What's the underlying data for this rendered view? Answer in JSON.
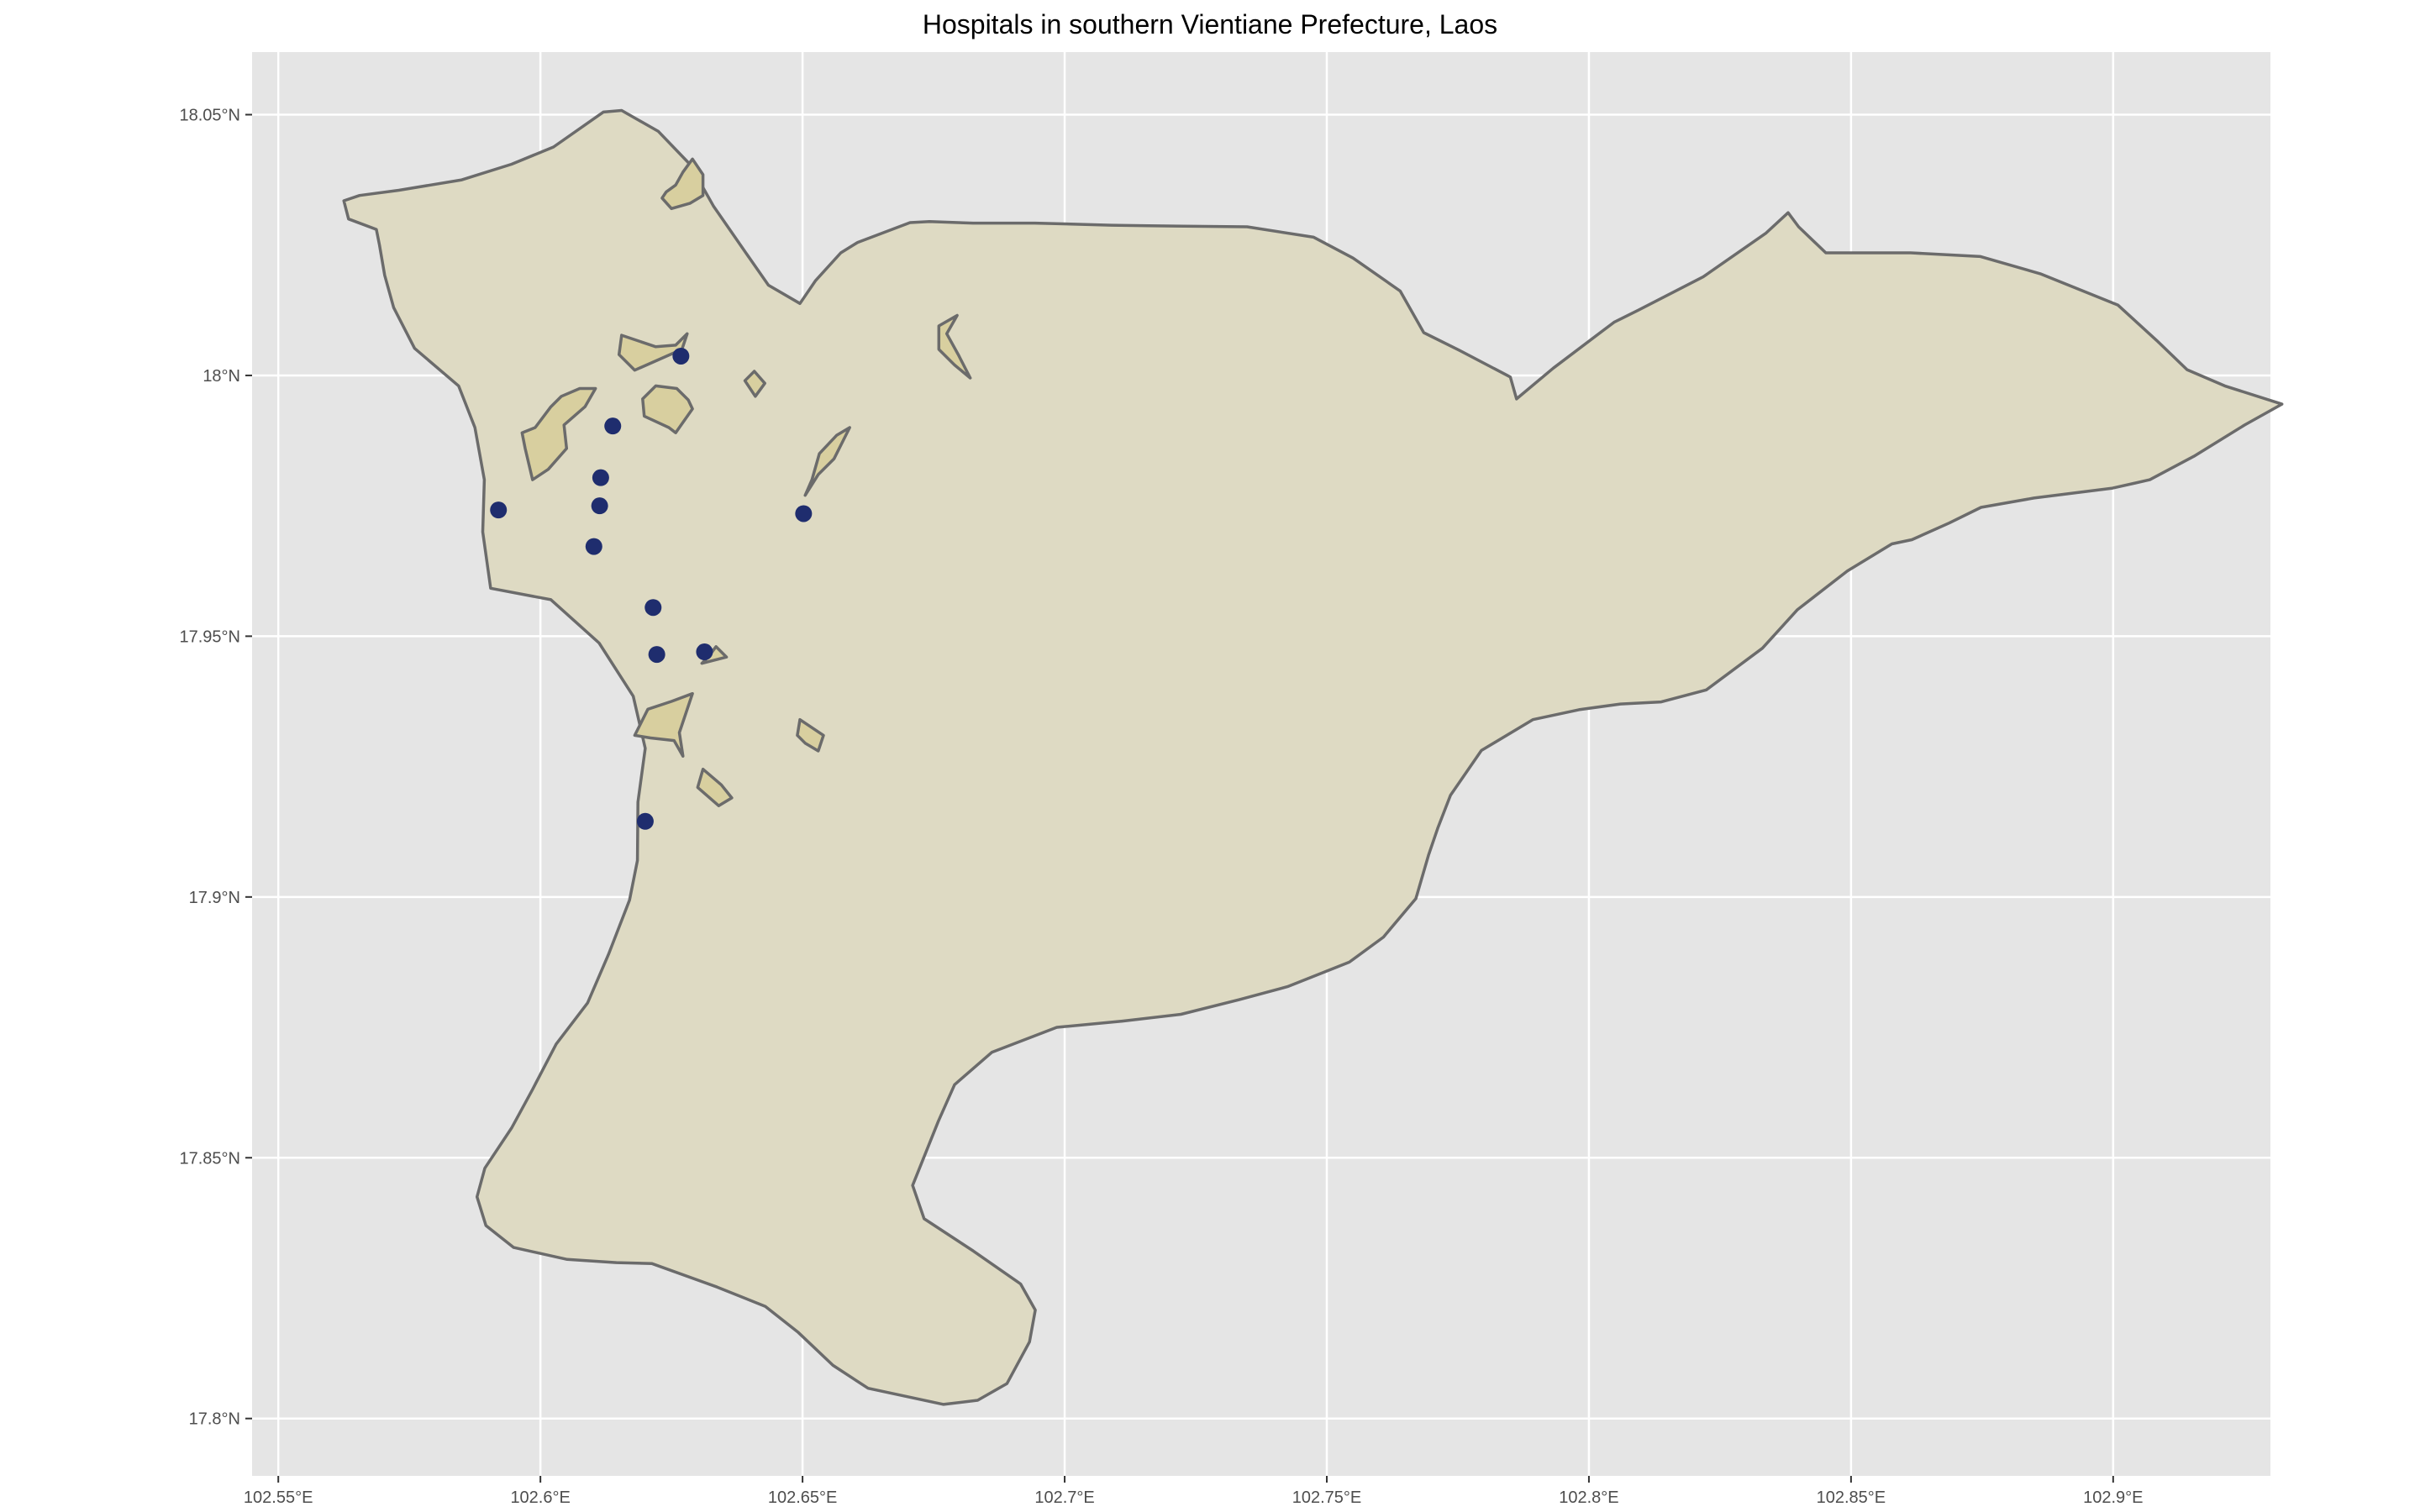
{
  "chart_data": {
    "type": "map",
    "title": "Hospitals in southern Vientiane Prefecture, Laos",
    "xlim": [
      102.545,
      102.93
    ],
    "ylim": [
      17.789,
      18.062
    ],
    "grid": true,
    "x_ticks": [
      {
        "value": 102.55,
        "label": "102.55°E"
      },
      {
        "value": 102.6,
        "label": "102.6°E"
      },
      {
        "value": 102.65,
        "label": "102.65°E"
      },
      {
        "value": 102.7,
        "label": "102.7°E"
      },
      {
        "value": 102.75,
        "label": "102.75°E"
      },
      {
        "value": 102.8,
        "label": "102.8°E"
      },
      {
        "value": 102.85,
        "label": "102.85°E"
      },
      {
        "value": 102.9,
        "label": "102.9°E"
      }
    ],
    "y_ticks": [
      {
        "value": 17.8,
        "label": "17.8°N"
      },
      {
        "value": 17.85,
        "label": "17.85°N"
      },
      {
        "value": 17.9,
        "label": "17.9°N"
      },
      {
        "value": 17.95,
        "label": "17.95°N"
      },
      {
        "value": 18.0,
        "label": "18°N"
      },
      {
        "value": 18.05,
        "label": "18.05°N"
      }
    ],
    "boundary": [
      [
        102.5625,
        18.0335
      ],
      [
        102.5655,
        18.0345
      ],
      [
        102.573,
        18.0355
      ],
      [
        102.585,
        18.0375
      ],
      [
        102.5945,
        18.0405
      ],
      [
        102.6025,
        18.0438
      ],
      [
        102.612,
        18.0505
      ],
      [
        102.6155,
        18.0508
      ],
      [
        102.6225,
        18.0468
      ],
      [
        102.6285,
        18.0405
      ],
      [
        102.633,
        18.0325
      ],
      [
        102.6385,
        18.0245
      ],
      [
        102.6435,
        18.0173
      ],
      [
        102.6495,
        18.0138
      ],
      [
        102.6525,
        18.0182
      ],
      [
        102.6573,
        18.0235
      ],
      [
        102.6605,
        18.0255
      ],
      [
        102.6705,
        18.0293
      ],
      [
        102.6742,
        18.0295
      ],
      [
        102.6825,
        18.0292
      ],
      [
        102.6943,
        18.0292
      ],
      [
        102.7089,
        18.0288
      ],
      [
        102.716,
        18.0287
      ],
      [
        102.7348,
        18.0285
      ],
      [
        102.7475,
        18.0265
      ],
      [
        102.755,
        18.0225
      ],
      [
        102.764,
        18.0162
      ],
      [
        102.7685,
        18.0082
      ],
      [
        102.7753,
        18.0048
      ],
      [
        102.785,
        17.9997
      ],
      [
        102.7862,
        17.9955
      ],
      [
        102.7932,
        18.0014
      ],
      [
        102.8048,
        18.0102
      ],
      [
        102.8094,
        18.0125
      ],
      [
        102.8218,
        18.0189
      ],
      [
        102.8338,
        18.0273
      ],
      [
        102.838,
        18.0312
      ],
      [
        102.84,
        18.0285
      ],
      [
        102.8452,
        18.0235
      ],
      [
        102.8614,
        18.0235
      ],
      [
        102.8747,
        18.0228
      ],
      [
        102.8861,
        18.0195
      ],
      [
        102.9009,
        18.0135
      ],
      [
        102.9083,
        18.0067
      ],
      [
        102.9141,
        18.0011
      ],
      [
        102.9213,
        17.998
      ],
      [
        102.9322,
        17.9945
      ],
      [
        102.9251,
        17.9905
      ],
      [
        102.9154,
        17.9845
      ],
      [
        102.907,
        17.98
      ],
      [
        102.8999,
        17.9784
      ],
      [
        102.8849,
        17.9765
      ],
      [
        102.8748,
        17.9747
      ],
      [
        102.8687,
        17.9717
      ],
      [
        102.8616,
        17.9685
      ],
      [
        102.8578,
        17.9677
      ],
      [
        102.8493,
        17.9625
      ],
      [
        102.8398,
        17.9551
      ],
      [
        102.8331,
        17.9477
      ],
      [
        102.8224,
        17.9397
      ],
      [
        102.8138,
        17.9374
      ],
      [
        102.806,
        17.937
      ],
      [
        102.7981,
        17.9359
      ],
      [
        102.7893,
        17.934
      ],
      [
        102.7795,
        17.9281
      ],
      [
        102.7736,
        17.9195
      ],
      [
        102.7712,
        17.9133
      ],
      [
        102.7694,
        17.908
      ],
      [
        102.767,
        17.8997
      ],
      [
        102.7608,
        17.8923
      ],
      [
        102.7543,
        17.8875
      ],
      [
        102.7425,
        17.8828
      ],
      [
        102.7333,
        17.8803
      ],
      [
        102.7222,
        17.8775
      ],
      [
        102.711,
        17.8762
      ],
      [
        102.6985,
        17.875
      ],
      [
        102.6861,
        17.8702
      ],
      [
        102.679,
        17.864
      ],
      [
        102.6759,
        17.857
      ],
      [
        102.671,
        17.8447
      ],
      [
        102.6732,
        17.8383
      ],
      [
        102.6826,
        17.8321
      ],
      [
        102.6916,
        17.8258
      ],
      [
        102.6944,
        17.8208
      ],
      [
        102.6933,
        17.8147
      ],
      [
        102.689,
        17.8067
      ],
      [
        102.6834,
        17.8035
      ],
      [
        102.6769,
        17.8027
      ],
      [
        102.6625,
        17.8058
      ],
      [
        102.6558,
        17.8102
      ],
      [
        102.6492,
        17.8165
      ],
      [
        102.6429,
        17.8215
      ],
      [
        102.6337,
        17.8252
      ],
      [
        102.6213,
        17.8297
      ],
      [
        102.6145,
        17.8299
      ],
      [
        102.6051,
        17.8305
      ],
      [
        102.5949,
        17.8328
      ],
      [
        102.5896,
        17.837
      ],
      [
        102.5879,
        17.8425
      ],
      [
        102.5894,
        17.848
      ],
      [
        102.5945,
        17.8557
      ],
      [
        102.5985,
        17.8631
      ],
      [
        102.603,
        17.8718
      ],
      [
        102.609,
        17.8797
      ],
      [
        102.613,
        17.889
      ],
      [
        102.617,
        17.8994
      ],
      [
        102.6185,
        17.907
      ],
      [
        102.6186,
        17.9182
      ],
      [
        102.62,
        17.9285
      ],
      [
        102.6177,
        17.9385
      ],
      [
        102.6112,
        17.9487
      ],
      [
        102.602,
        17.957
      ],
      [
        102.5905,
        17.9592
      ],
      [
        102.589,
        17.97
      ],
      [
        102.5893,
        17.98
      ],
      [
        102.5875,
        17.99
      ],
      [
        102.5844,
        17.998
      ],
      [
        102.576,
        18.0052
      ],
      [
        102.572,
        18.013
      ],
      [
        102.5703,
        18.0192
      ],
      [
        102.5693,
        18.025
      ],
      [
        102.5687,
        18.028
      ],
      [
        102.5634,
        18.03
      ],
      [
        102.5625,
        18.0335
      ]
    ],
    "inner_areas": [
      [
        [
          102.625,
          18.032
        ],
        [
          102.6285,
          18.033
        ],
        [
          102.631,
          18.0345
        ],
        [
          102.631,
          18.0385
        ],
        [
          102.629,
          18.0415
        ],
        [
          102.6272,
          18.039
        ],
        [
          102.6258,
          18.0365
        ],
        [
          102.624,
          18.0352
        ],
        [
          102.6232,
          18.034
        ],
        [
          102.625,
          18.032
        ]
      ],
      [
        [
          102.628,
          18.008
        ],
        [
          102.6258,
          18.0058
        ],
        [
          102.622,
          18.0055
        ],
        [
          102.6155,
          18.0077
        ],
        [
          102.615,
          18.004
        ],
        [
          102.618,
          18.001
        ],
        [
          102.627,
          18.005
        ],
        [
          102.628,
          18.008
        ]
      ],
      [
        [
          102.629,
          17.9936
        ],
        [
          102.6258,
          17.989
        ],
        [
          102.6245,
          17.99
        ],
        [
          102.6198,
          17.9922
        ],
        [
          102.6195,
          17.9955
        ],
        [
          102.622,
          17.998
        ],
        [
          102.626,
          17.9975
        ],
        [
          102.6282,
          17.9953
        ],
        [
          102.629,
          17.9936
        ]
      ],
      [
        [
          102.6105,
          17.9975
        ],
        [
          102.6085,
          17.994
        ],
        [
          102.6045,
          17.9905
        ],
        [
          102.605,
          17.986
        ],
        [
          102.6015,
          17.982
        ],
        [
          102.5985,
          17.98
        ],
        [
          102.5971,
          17.986
        ],
        [
          102.5965,
          17.989
        ],
        [
          102.599,
          17.99
        ],
        [
          102.602,
          17.994
        ],
        [
          102.604,
          17.996
        ],
        [
          102.6075,
          17.9975
        ],
        [
          102.6105,
          17.9975
        ]
      ],
      [
        [
          102.659,
          17.99
        ],
        [
          102.656,
          17.984
        ],
        [
          102.653,
          17.981
        ],
        [
          102.6505,
          17.977
        ],
        [
          102.6518,
          17.98
        ],
        [
          102.6532,
          17.985
        ],
        [
          102.6565,
          17.9885
        ],
        [
          102.659,
          17.99
        ]
      ],
      [
        [
          102.6795,
          18.0115
        ],
        [
          102.6775,
          18.008
        ],
        [
          102.6797,
          18.004
        ],
        [
          102.682,
          17.9995
        ],
        [
          102.679,
          18.002
        ],
        [
          102.676,
          18.005
        ],
        [
          102.676,
          18.0095
        ],
        [
          102.6795,
          18.0115
        ]
      ],
      [
        [
          102.629,
          17.939
        ],
        [
          102.625,
          17.9375
        ],
        [
          102.6205,
          17.936
        ],
        [
          102.618,
          17.931
        ],
        [
          102.621,
          17.9305
        ],
        [
          102.6255,
          17.93
        ],
        [
          102.6272,
          17.927
        ],
        [
          102.6265,
          17.9315
        ],
        [
          102.629,
          17.939
        ]
      ],
      [
        [
          102.6355,
          17.946
        ],
        [
          102.6335,
          17.948
        ],
        [
          102.632,
          17.946
        ],
        [
          102.6308,
          17.9448
        ],
        [
          102.6355,
          17.946
        ]
      ],
      [
        [
          102.6495,
          17.934
        ],
        [
          102.654,
          17.931
        ],
        [
          102.653,
          17.928
        ],
        [
          102.6505,
          17.9295
        ],
        [
          102.649,
          17.931
        ],
        [
          102.6495,
          17.934
        ]
      ],
      [
        [
          102.631,
          17.9245
        ],
        [
          102.6345,
          17.9215
        ],
        [
          102.6365,
          17.919
        ],
        [
          102.634,
          17.9175
        ],
        [
          102.63,
          17.921
        ],
        [
          102.631,
          17.9245
        ]
      ],
      [
        [
          102.6408,
          18.0008
        ],
        [
          102.6428,
          17.9985
        ],
        [
          102.641,
          17.996
        ],
        [
          102.639,
          17.999
        ],
        [
          102.6408,
          18.0008
        ]
      ]
    ],
    "points": [
      {
        "lon": 102.6268,
        "lat": 18.0037
      },
      {
        "lon": 102.6138,
        "lat": 17.9903
      },
      {
        "lon": 102.6115,
        "lat": 17.9804
      },
      {
        "lon": 102.6113,
        "lat": 17.975
      },
      {
        "lon": 102.6102,
        "lat": 17.9672
      },
      {
        "lon": 102.592,
        "lat": 17.9742
      },
      {
        "lon": 102.6502,
        "lat": 17.9735
      },
      {
        "lon": 102.6215,
        "lat": 17.9555
      },
      {
        "lon": 102.6222,
        "lat": 17.9465
      },
      {
        "lon": 102.6313,
        "lat": 17.947
      },
      {
        "lon": 102.62,
        "lat": 17.9145
      }
    ],
    "colors": {
      "panel": "#e5e5e5",
      "grid": "#ffffff",
      "region_fill": "#dedac3",
      "inner_fill": "#d8cf9f",
      "outline": "#6b6b6b",
      "point": "#1f2d6e"
    }
  }
}
